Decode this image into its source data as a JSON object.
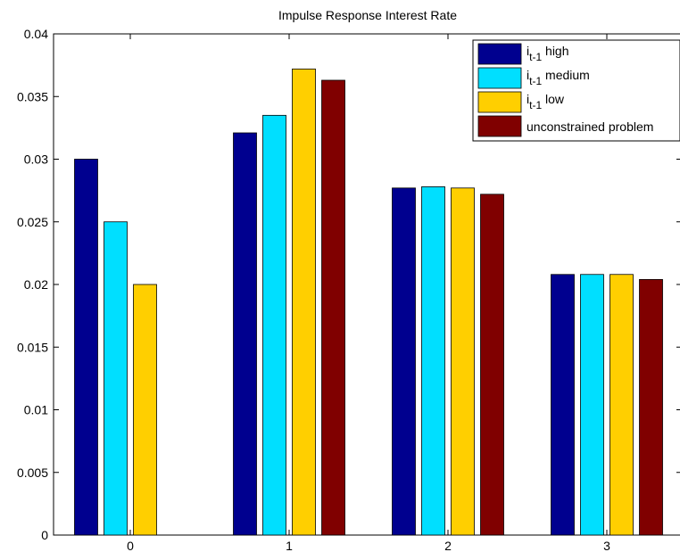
{
  "chart_data": {
    "type": "bar",
    "title": "Impulse Response Interest Rate",
    "xlabel": "",
    "ylabel": "",
    "categories": [
      "0",
      "1",
      "2",
      "3"
    ],
    "ylim": [
      0,
      0.04
    ],
    "yticks": [
      "0",
      "0.005",
      "0.01",
      "0.015",
      "0.02",
      "0.025",
      "0.03",
      "0.035",
      "0.04"
    ],
    "grid": false,
    "legend_position": "top-right",
    "series": [
      {
        "name_base": "i",
        "name_sub": "t-1",
        "name_suffix": " high",
        "color": "#00008f",
        "values": [
          0.03,
          0.0321,
          0.0277,
          0.0208
        ]
      },
      {
        "name_base": "i",
        "name_sub": "t-1",
        "name_suffix": " medium",
        "color": "#00dfff",
        "values": [
          0.025,
          0.0335,
          0.0278,
          0.0208
        ]
      },
      {
        "name_base": "i",
        "name_sub": "t-1",
        "name_suffix": " low",
        "color": "#ffcf00",
        "values": [
          0.02,
          0.0372,
          0.0277,
          0.0208
        ]
      },
      {
        "name_base": "unconstrained problem",
        "name_sub": "",
        "name_suffix": "",
        "color": "#800000",
        "values": [
          null,
          0.0363,
          0.0272,
          0.0204
        ]
      }
    ]
  }
}
